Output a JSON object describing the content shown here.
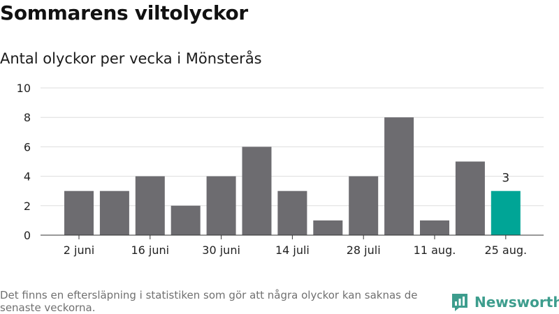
{
  "title": "Sommarens viltolyckor",
  "subtitle": "Antal olyckor per vecka i Mönsterås",
  "footnote": "Det finns en eftersläpning i statistiken som gör att några olyckor kan saknas de senaste veckorna.",
  "brand": "Newsworthy",
  "colors": {
    "bar": "#6d6c70",
    "highlight": "#00a596",
    "grid": "#dddddd",
    "brand": "#3d9d8d"
  },
  "chart_data": {
    "type": "bar",
    "title": "Sommarens viltolyckor",
    "subtitle": "Antal olyckor per vecka i Mönsterås",
    "xlabel": "",
    "ylabel": "",
    "values": [
      3,
      3,
      4,
      2,
      4,
      6,
      3,
      1,
      4,
      8,
      1,
      5,
      3
    ],
    "x_tick_labels": [
      "2 juni",
      "16 juni",
      "30 juni",
      "14 juli",
      "28 juli",
      "11 aug.",
      "25 aug."
    ],
    "x_tick_positions": [
      0,
      2,
      4,
      6,
      8,
      10,
      12
    ],
    "ylim": [
      0,
      10
    ],
    "yticks": [
      0,
      2,
      4,
      6,
      8,
      10
    ],
    "grid": true,
    "highlight_index": 12,
    "data_labels": [
      {
        "index": 12,
        "text": "3"
      }
    ]
  }
}
